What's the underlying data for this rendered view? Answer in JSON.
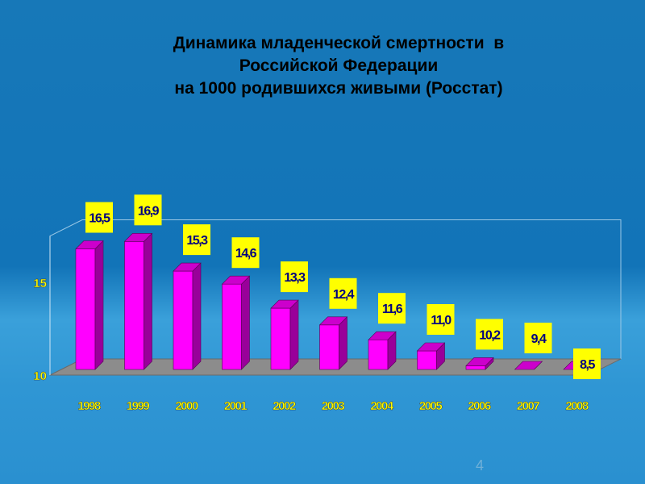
{
  "slide": {
    "title_line1": "Динамика младенческой смертности  в",
    "title_line2": "Российской Федерации",
    "title_line3": "на 1000 родившихся живыми (Росстат)",
    "page_number": "4"
  },
  "colors": {
    "background": "#1274b8",
    "bar_front": "#ff00ff",
    "bar_side": "#99009a",
    "bar_top": "#cc00cc",
    "label_box": "#ffff00",
    "label_text": "#00007f",
    "floor": "#8c8c8c",
    "axis_text": "#ffff00"
  },
  "chart_data": {
    "type": "bar",
    "categories": [
      "1998",
      "1999",
      "2000",
      "2001",
      "2002",
      "2003",
      "2004",
      "2005",
      "2006",
      "2007",
      "2008"
    ],
    "values": [
      16.5,
      16.9,
      15.3,
      14.6,
      13.3,
      12.4,
      11.6,
      11.0,
      10.2,
      9.4,
      8.5
    ],
    "value_labels": [
      "16,5",
      "16,9",
      "15,3",
      "14,6",
      "13,3",
      "12,4",
      "11,6",
      "11,0",
      "10,2",
      "9,4",
      "8,5"
    ],
    "y_ticks": [
      "10",
      "15"
    ],
    "ylim": [
      10,
      17.5
    ],
    "title": "Динамика младенческой смертности  в Российской Федерации на 1000 родившихся живыми (Росстат)",
    "xlabel": "",
    "ylabel": "",
    "grid": false,
    "style": "3d-column"
  }
}
